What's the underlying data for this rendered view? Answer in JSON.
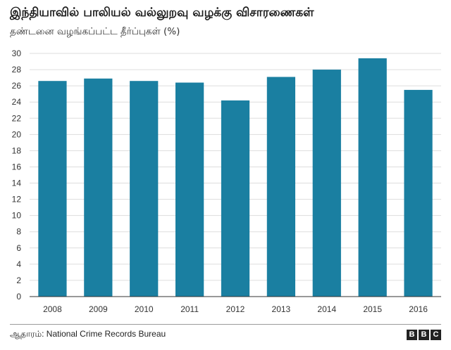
{
  "header": {
    "title": "இந்தியாவில் பாலியல் வல்லுறவு வழக்கு விசாரணைகள்",
    "subtitle": "தண்டனை வழங்கப்பட்ட தீர்ப்புகள் (%)"
  },
  "footer": {
    "source": "ஆதாரம்: National Crime Records Bureau",
    "logo": [
      "B",
      "B",
      "C"
    ]
  },
  "colors": {
    "bar": "#1a7fa1",
    "axis_text": "#333333",
    "gridline": "#dddddd"
  },
  "chart_data": {
    "type": "bar",
    "categories": [
      "2008",
      "2009",
      "2010",
      "2011",
      "2012",
      "2013",
      "2014",
      "2015",
      "2016"
    ],
    "series": [
      {
        "values": [
          26.6,
          26.9,
          26.6,
          26.4,
          24.2,
          27.1,
          28.0,
          29.4,
          25.5
        ]
      }
    ],
    "title": "இந்தியாவில் பாலியல் வல்லுறவு வழக்கு விசாரணைகள்",
    "ylabel": "தண்டனை வழங்கப்பட்ட தீர்ப்புகள் (%)",
    "ylim": [
      0,
      30
    ],
    "yticks": [
      0,
      2,
      4,
      6,
      8,
      10,
      12,
      14,
      16,
      18,
      20,
      22,
      24,
      26,
      28,
      30
    ],
    "grid": true,
    "legend": "none"
  }
}
